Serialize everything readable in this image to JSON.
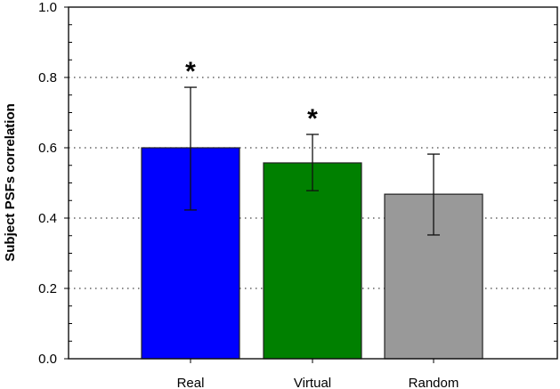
{
  "chart_data": {
    "type": "bar",
    "title": "",
    "xlabel": "",
    "ylabel": "Subject PSFs correlation",
    "ylim": [
      0.0,
      1.0
    ],
    "yticks": [
      "0.0",
      "0.2",
      "0.4",
      "0.6",
      "0.8",
      "1.0"
    ],
    "grid": "horizontal dotted at major ticks (0.2, 0.4, 0.6, 0.8)",
    "legend": null,
    "categories": [
      "Real",
      "Virtual",
      "Random"
    ],
    "values": [
      0.6,
      0.557,
      0.468
    ],
    "error_upper": [
      0.772,
      0.638,
      0.582
    ],
    "error_lower": [
      0.423,
      0.478,
      0.352
    ],
    "colors": [
      "#0000ff",
      "#008000",
      "#999999"
    ],
    "annotations": [
      {
        "category": "Real",
        "text": "*"
      },
      {
        "category": "Virtual",
        "text": "*"
      }
    ]
  }
}
